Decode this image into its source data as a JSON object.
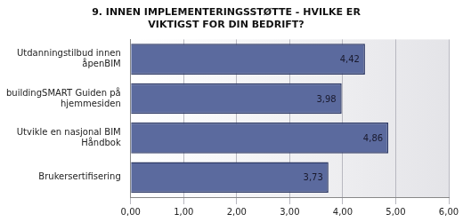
{
  "chart_data": {
    "type": "bar",
    "orientation": "horizontal",
    "title": "9. INNEN IMPLEMENTERINGSSTØTTE - HVILKE ER VIKTIGST FOR DIN BEDRIFT?",
    "categories": [
      "Utdanningstilbud innen åpenBIM",
      "buildingSMART Guiden på hjemmesiden",
      "Utvikle en nasjonal BIM Håndbok",
      "Brukersertifisering"
    ],
    "values": [
      4.42,
      3.98,
      4.86,
      3.73
    ],
    "value_labels": [
      "4,42",
      "3,98",
      "4,86",
      "3,73"
    ],
    "data_labels": true,
    "color": "#5b6a9e",
    "xlim": [
      0,
      6
    ],
    "xticks": [
      {
        "value": 0,
        "label": "0,00"
      },
      {
        "value": 1,
        "label": "1,00"
      },
      {
        "value": 2,
        "label": "2,00"
      },
      {
        "value": 3,
        "label": "3,00"
      },
      {
        "value": 4,
        "label": "4,00"
      },
      {
        "value": 5,
        "label": "5,00"
      },
      {
        "value": 6,
        "label": "6,00"
      }
    ],
    "grid": true
  }
}
